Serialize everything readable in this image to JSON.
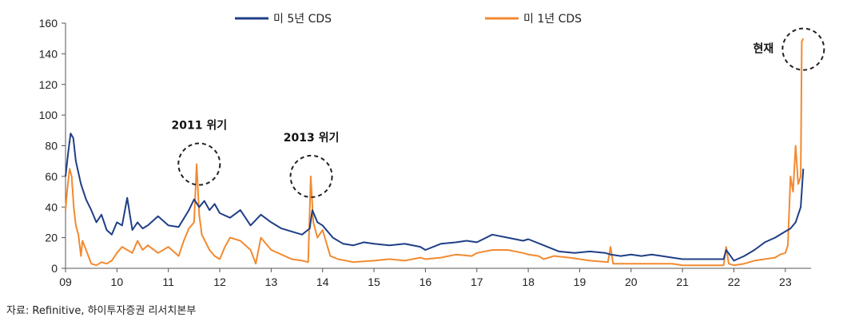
{
  "chart_data": {
    "type": "line",
    "title": "",
    "xlabel": "",
    "ylabel": "",
    "ylim": [
      0,
      160
    ],
    "yticks": [
      0,
      20,
      40,
      60,
      80,
      100,
      120,
      140,
      160
    ],
    "xlim": [
      2009.0,
      2023.5
    ],
    "xticks": [
      2009,
      2010,
      2011,
      2012,
      2013,
      2014,
      2015,
      2016,
      2017,
      2018,
      2019,
      2020,
      2021,
      2022,
      2023
    ],
    "xtick_labels": [
      "09",
      "10",
      "11",
      "12",
      "13",
      "14",
      "15",
      "16",
      "17",
      "18",
      "19",
      "20",
      "21",
      "22",
      "23"
    ],
    "grid": false,
    "legend_position": "top",
    "series": [
      {
        "name": "미 5년 CDS",
        "color": "#1f3f86",
        "x": [
          2009.0,
          2009.05,
          2009.1,
          2009.15,
          2009.2,
          2009.3,
          2009.4,
          2009.5,
          2009.6,
          2009.7,
          2009.8,
          2009.9,
          2010.0,
          2010.1,
          2010.2,
          2010.3,
          2010.4,
          2010.5,
          2010.6,
          2010.8,
          2011.0,
          2011.2,
          2011.4,
          2011.5,
          2011.6,
          2011.7,
          2011.8,
          2011.9,
          2012.0,
          2012.2,
          2012.4,
          2012.6,
          2012.8,
          2013.0,
          2013.2,
          2013.4,
          2013.6,
          2013.75,
          2013.8,
          2013.9,
          2014.0,
          2014.2,
          2014.4,
          2014.6,
          2014.8,
          2015.0,
          2015.3,
          2015.6,
          2015.9,
          2016.0,
          2016.3,
          2016.6,
          2016.8,
          2017.0,
          2017.3,
          2017.6,
          2017.9,
          2018.0,
          2018.3,
          2018.6,
          2018.9,
          2019.2,
          2019.5,
          2019.6,
          2019.8,
          2020.0,
          2020.2,
          2020.4,
          2020.6,
          2020.8,
          2021.0,
          2021.3,
          2021.6,
          2021.8,
          2021.85,
          2022.0,
          2022.2,
          2022.4,
          2022.6,
          2022.8,
          2023.0,
          2023.1,
          2023.2,
          2023.3,
          2023.35
        ],
        "y": [
          60,
          75,
          88,
          85,
          70,
          55,
          45,
          38,
          30,
          35,
          25,
          22,
          30,
          28,
          46,
          25,
          30,
          26,
          28,
          34,
          28,
          27,
          38,
          45,
          40,
          44,
          38,
          42,
          36,
          33,
          38,
          28,
          35,
          30,
          26,
          24,
          22,
          26,
          38,
          30,
          28,
          20,
          16,
          15,
          17,
          16,
          15,
          16,
          14,
          12,
          16,
          17,
          18,
          17,
          22,
          20,
          18,
          19,
          15,
          11,
          10,
          11,
          10,
          9,
          8,
          9,
          8,
          9,
          8,
          7,
          6,
          6,
          6,
          6,
          12,
          5,
          8,
          12,
          17,
          20,
          24,
          26,
          30,
          40,
          65
        ]
      },
      {
        "name": "미 1년 CDS",
        "color": "#f28a30",
        "x": [
          2009.0,
          2009.03,
          2009.08,
          2009.12,
          2009.16,
          2009.2,
          2009.25,
          2009.3,
          2009.33,
          2009.4,
          2009.5,
          2009.6,
          2009.7,
          2009.8,
          2009.9,
          2010.0,
          2010.1,
          2010.2,
          2010.3,
          2010.4,
          2010.5,
          2010.6,
          2010.8,
          2011.0,
          2011.2,
          2011.3,
          2011.4,
          2011.5,
          2011.55,
          2011.6,
          2011.65,
          2011.8,
          2011.9,
          2012.0,
          2012.1,
          2012.2,
          2012.4,
          2012.6,
          2012.7,
          2012.8,
          2013.0,
          2013.2,
          2013.4,
          2013.6,
          2013.72,
          2013.77,
          2013.82,
          2013.9,
          2014.0,
          2014.15,
          2014.3,
          2014.6,
          2015.0,
          2015.3,
          2015.6,
          2015.9,
          2016.0,
          2016.3,
          2016.6,
          2016.9,
          2017.0,
          2017.3,
          2017.6,
          2017.9,
          2018.0,
          2018.2,
          2018.3,
          2018.5,
          2018.8,
          2019.2,
          2019.55,
          2019.6,
          2019.65,
          2020.0,
          2020.4,
          2020.8,
          2021.0,
          2021.3,
          2021.6,
          2021.8,
          2021.85,
          2021.9,
          2022.0,
          2022.2,
          2022.4,
          2022.6,
          2022.8,
          2022.9,
          2023.0,
          2023.05,
          2023.1,
          2023.15,
          2023.2,
          2023.25,
          2023.3,
          2023.32,
          2023.35
        ],
        "y": [
          38,
          50,
          65,
          60,
          40,
          28,
          22,
          8,
          18,
          12,
          3,
          2,
          4,
          3,
          5,
          10,
          14,
          12,
          10,
          18,
          12,
          15,
          10,
          14,
          8,
          18,
          26,
          30,
          68,
          35,
          22,
          12,
          8,
          6,
          14,
          20,
          18,
          12,
          3,
          20,
          12,
          9,
          6,
          5,
          4,
          60,
          30,
          20,
          25,
          8,
          6,
          4,
          5,
          6,
          5,
          7,
          6,
          7,
          9,
          8,
          10,
          12,
          12,
          10,
          9,
          8,
          6,
          8,
          7,
          5,
          4,
          14,
          3,
          3,
          3,
          3,
          2,
          2,
          2,
          2,
          14,
          3,
          2,
          3,
          5,
          6,
          7,
          9,
          10,
          15,
          60,
          50,
          80,
          55,
          60,
          148,
          150
        ]
      }
    ],
    "annotations": [
      {
        "text": "2011 위기",
        "x": 2011.6,
        "y": 68
      },
      {
        "text": "2013 위기",
        "x": 2013.78,
        "y": 60
      },
      {
        "text": "현재",
        "x": 2023.35,
        "y": 143
      }
    ]
  },
  "source_note": "자료: Refinitive, 하이투자증권 리서치본부"
}
